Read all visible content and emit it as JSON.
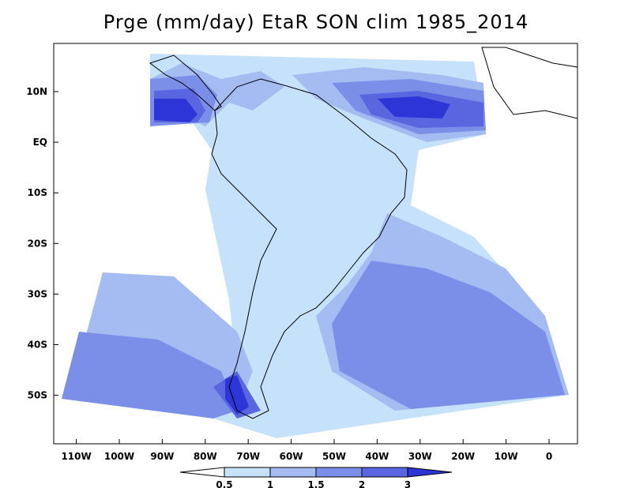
{
  "map": {
    "title": "Prge (mm/day) EtaR SON clim 1985_2014",
    "lat_ticks": [
      {
        "label": "10N",
        "value": 10
      },
      {
        "label": "EQ",
        "value": 0
      },
      {
        "label": "10S",
        "value": -10
      },
      {
        "label": "20S",
        "value": -20
      },
      {
        "label": "30S",
        "value": -30
      },
      {
        "label": "40S",
        "value": -40
      },
      {
        "label": "50S",
        "value": -50
      }
    ],
    "lon_ticks": [
      {
        "label": "110W",
        "value": -110
      },
      {
        "label": "100W",
        "value": -100
      },
      {
        "label": "90W",
        "value": -90
      },
      {
        "label": "80W",
        "value": -80
      },
      {
        "label": "70W",
        "value": -70
      },
      {
        "label": "60W",
        "value": -60
      },
      {
        "label": "50W",
        "value": -50
      },
      {
        "label": "40W",
        "value": -40
      },
      {
        "label": "30W",
        "value": -30
      },
      {
        "label": "20W",
        "value": -20
      },
      {
        "label": "10W",
        "value": -10
      },
      {
        "label": "0",
        "value": 0
      }
    ],
    "extent": {
      "lon": [
        -117,
        6
      ],
      "lat": [
        -59,
        20
      ]
    },
    "colorbar": {
      "levels": [
        "0.5",
        "1",
        "1.5",
        "2",
        "3"
      ],
      "colors": [
        "#ffffff",
        "#c6e2fa",
        "#a4bcf2",
        "#7c8fe8",
        "#5966e0",
        "#2e35d6"
      ]
    }
  }
}
